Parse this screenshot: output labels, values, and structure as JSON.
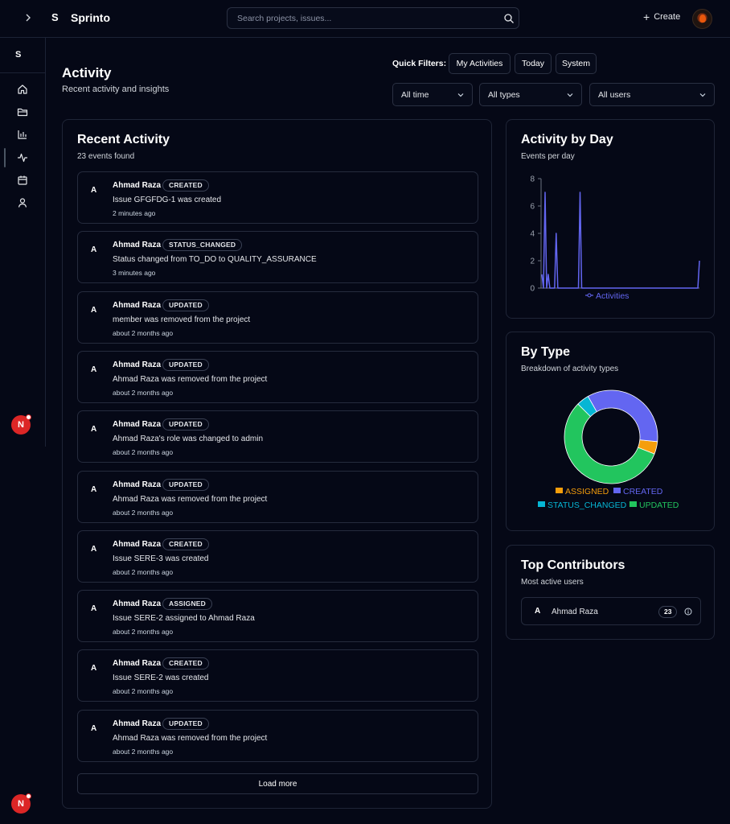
{
  "header": {
    "expand_icon": "chevron-right-icon",
    "logo_mark": "S",
    "app_title": "Sprinto",
    "search_placeholder": "Search projects, issues...",
    "create_label": "Create"
  },
  "sidebar": {
    "logo_mark": "S",
    "nav": [
      "home-icon",
      "folder-icon",
      "bar-chart-icon",
      "activity-icon",
      "calendar-icon",
      "user-icon"
    ],
    "active": "activity-icon",
    "notif_letter_1": "N",
    "notif_letter_2": "N"
  },
  "page": {
    "title": "Activity",
    "subtitle": "Recent activity and insights"
  },
  "filters": {
    "quick_label": "Quick Filters:",
    "quick": [
      "My Activities",
      "Today",
      "System"
    ],
    "time": "All time",
    "types": "All types",
    "users": "All users"
  },
  "recent": {
    "title": "Recent Activity",
    "count": "23 events found",
    "load_more": "Load more",
    "items": [
      {
        "avatar": "A",
        "user": "Ahmad Raza",
        "type": "CREATED",
        "text": "Issue GFGFDG-1 was created",
        "time": "2 minutes ago"
      },
      {
        "avatar": "A",
        "user": "Ahmad Raza",
        "type": "STATUS_CHANGED",
        "text": "Status changed from TO_DO to QUALITY_ASSURANCE",
        "time": "3 minutes ago"
      },
      {
        "avatar": "A",
        "user": "Ahmad Raza",
        "type": "UPDATED",
        "text": "member was removed from the project",
        "time": "about 2 months ago"
      },
      {
        "avatar": "A",
        "user": "Ahmad Raza",
        "type": "UPDATED",
        "text": "Ahmad Raza was removed from the project",
        "time": "about 2 months ago"
      },
      {
        "avatar": "A",
        "user": "Ahmad Raza",
        "type": "UPDATED",
        "text": "Ahmad Raza's role was changed to admin",
        "time": "about 2 months ago"
      },
      {
        "avatar": "A",
        "user": "Ahmad Raza",
        "type": "UPDATED",
        "text": "Ahmad Raza was removed from the project",
        "time": "about 2 months ago"
      },
      {
        "avatar": "A",
        "user": "Ahmad Raza",
        "type": "CREATED",
        "text": "Issue SERE-3 was created",
        "time": "about 2 months ago"
      },
      {
        "avatar": "A",
        "user": "Ahmad Raza",
        "type": "ASSIGNED",
        "text": "Issue SERE-2 assigned to Ahmad Raza",
        "time": "about 2 months ago"
      },
      {
        "avatar": "A",
        "user": "Ahmad Raza",
        "type": "CREATED",
        "text": "Issue SERE-2 was created",
        "time": "about 2 months ago"
      },
      {
        "avatar": "A",
        "user": "Ahmad Raza",
        "type": "UPDATED",
        "text": "Ahmad Raza was removed from the project",
        "time": "about 2 months ago"
      }
    ]
  },
  "by_day": {
    "title": "Activity by Day",
    "subtitle": "Events per day",
    "color": "#6366f1"
  },
  "by_type": {
    "title": "By Type",
    "subtitle": "Breakdown of activity types"
  },
  "contributors": {
    "title": "Top Contributors",
    "subtitle": "Most active users",
    "items": [
      {
        "avatar": "A",
        "name": "Ahmad Raza",
        "count": "23"
      }
    ]
  },
  "chart_data": [
    {
      "type": "line",
      "title": "Activity by Day",
      "ylim": [
        0,
        8
      ],
      "yticks": [
        0,
        2,
        4,
        6,
        8
      ],
      "series": [
        {
          "name": "Activities",
          "color": "#6366f1",
          "values": [
            1,
            0,
            7,
            0,
            1,
            0,
            0,
            0,
            0,
            4,
            0,
            0,
            0,
            0,
            0,
            0,
            0,
            0,
            0,
            0,
            0,
            0,
            0,
            0,
            7,
            0,
            0,
            0,
            0,
            0,
            0,
            0,
            0,
            0,
            0,
            0,
            0,
            0,
            0,
            0,
            0,
            0,
            0,
            0,
            0,
            0,
            0,
            0,
            0,
            0,
            0,
            0,
            0,
            0,
            0,
            0,
            0,
            0,
            0,
            0,
            0,
            0,
            0,
            0,
            0,
            0,
            0,
            0,
            0,
            0,
            0,
            0,
            0,
            0,
            0,
            0,
            0,
            0,
            0,
            0,
            0,
            0,
            0,
            0,
            0,
            0,
            0,
            0,
            0,
            0,
            0,
            0,
            0,
            0,
            0,
            0,
            0,
            0,
            0,
            2
          ]
        }
      ],
      "legend": "bottom",
      "grid": false
    },
    {
      "type": "pie",
      "title": "By Type",
      "donut": true,
      "legend": "bottom",
      "slices": [
        {
          "name": "ASSIGNED",
          "value": 1,
          "color": "#f59e0b"
        },
        {
          "name": "CREATED",
          "value": 8,
          "color": "#6366f1"
        },
        {
          "name": "STATUS_CHANGED",
          "value": 1,
          "color": "#06b6d4"
        },
        {
          "name": "UPDATED",
          "value": 13,
          "color": "#22c55e"
        }
      ]
    }
  ]
}
